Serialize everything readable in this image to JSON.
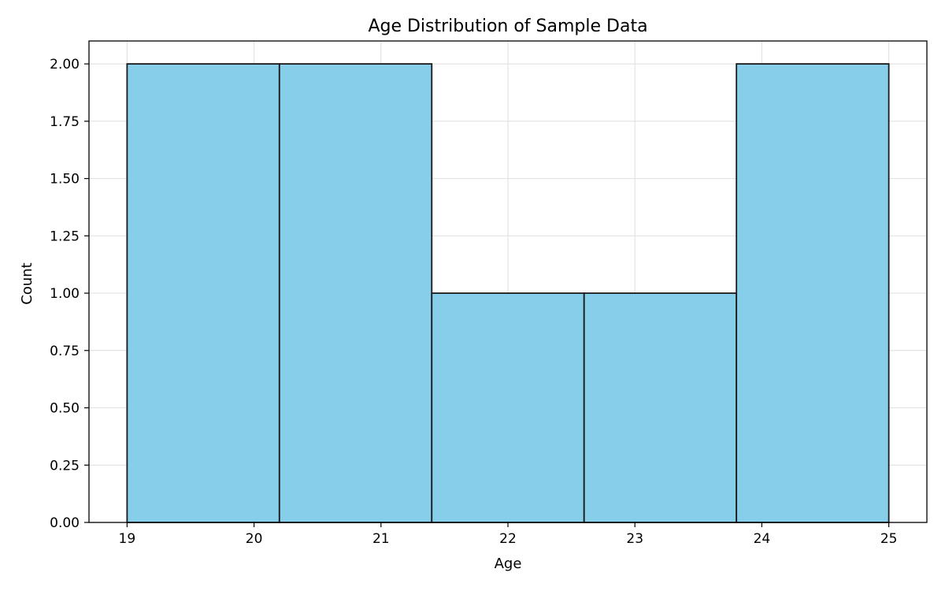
{
  "chart_data": {
    "type": "bar",
    "title": "Age Distribution of Sample Data",
    "xlabel": "Age",
    "ylabel": "Count",
    "bins": [
      {
        "start": 19.0,
        "end": 20.2,
        "count": 2
      },
      {
        "start": 20.2,
        "end": 21.4,
        "count": 2
      },
      {
        "start": 21.4,
        "end": 22.6,
        "count": 1
      },
      {
        "start": 22.6,
        "end": 23.8,
        "count": 1
      },
      {
        "start": 23.8,
        "end": 25.0,
        "count": 2
      }
    ],
    "xlim": [
      18.7,
      25.3
    ],
    "ylim": [
      0,
      2.1
    ],
    "xticks": [
      19,
      20,
      21,
      22,
      23,
      24,
      25
    ],
    "xtick_labels": [
      "19",
      "20",
      "21",
      "22",
      "23",
      "24",
      "25"
    ],
    "yticks": [
      0,
      0.25,
      0.5,
      0.75,
      1.0,
      1.25,
      1.5,
      1.75,
      2.0
    ],
    "ytick_labels": [
      "0.00",
      "0.25",
      "0.50",
      "0.75",
      "1.00",
      "1.25",
      "1.50",
      "1.75",
      "2.00"
    ],
    "grid": true,
    "bar_color": "#87CEEB",
    "edge_color": "#1a1a1a"
  }
}
